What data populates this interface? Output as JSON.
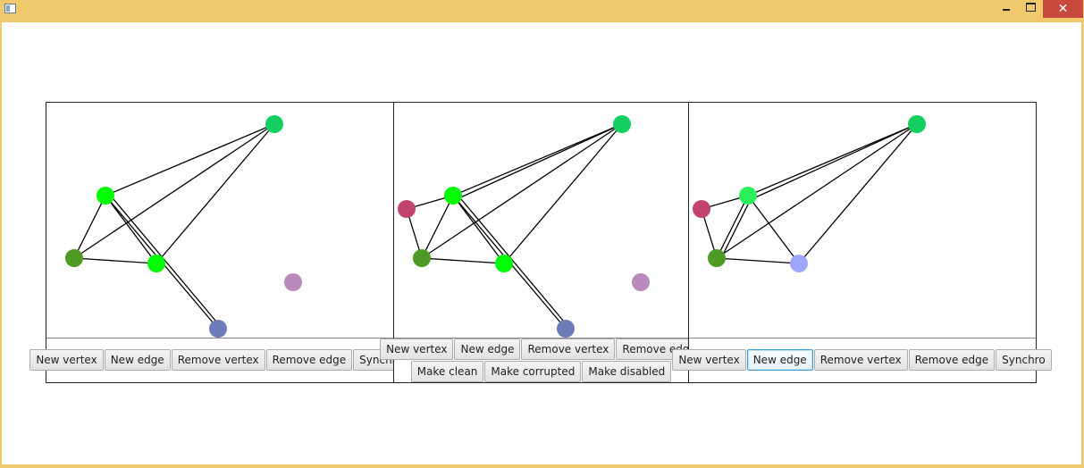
{
  "window": {
    "title": "",
    "close_glyph": "✕"
  },
  "panels": [
    {
      "buttons_row1": [
        "New vertex",
        "New edge",
        "Remove vertex",
        "Remove edge",
        "Synchro"
      ],
      "buttons_row2": [],
      "focused_button": ""
    },
    {
      "buttons_row1": [
        "New vertex",
        "New edge",
        "Remove vertex",
        "Remove edge"
      ],
      "buttons_row2": [
        "Make clean",
        "Make corrupted",
        "Make disabled"
      ],
      "focused_button": ""
    },
    {
      "buttons_row1": [
        "New vertex",
        "New edge",
        "Remove vertex",
        "Remove edge",
        "Synchro"
      ],
      "buttons_row2": [],
      "focused_button": "New edge"
    }
  ],
  "colors": {
    "vertex_bright_green": "#00ff00",
    "vertex_green": "#13cf60",
    "vertex_olive_green": "#4f9a25",
    "vertex_blue": "#6e7bb8",
    "vertex_mauve": "#b98aba",
    "vertex_magenta": "#c2436f",
    "vertex_light_blue": "#9ea6fb",
    "vertex_light_green": "#2cf05a",
    "edge": "#000000"
  }
}
